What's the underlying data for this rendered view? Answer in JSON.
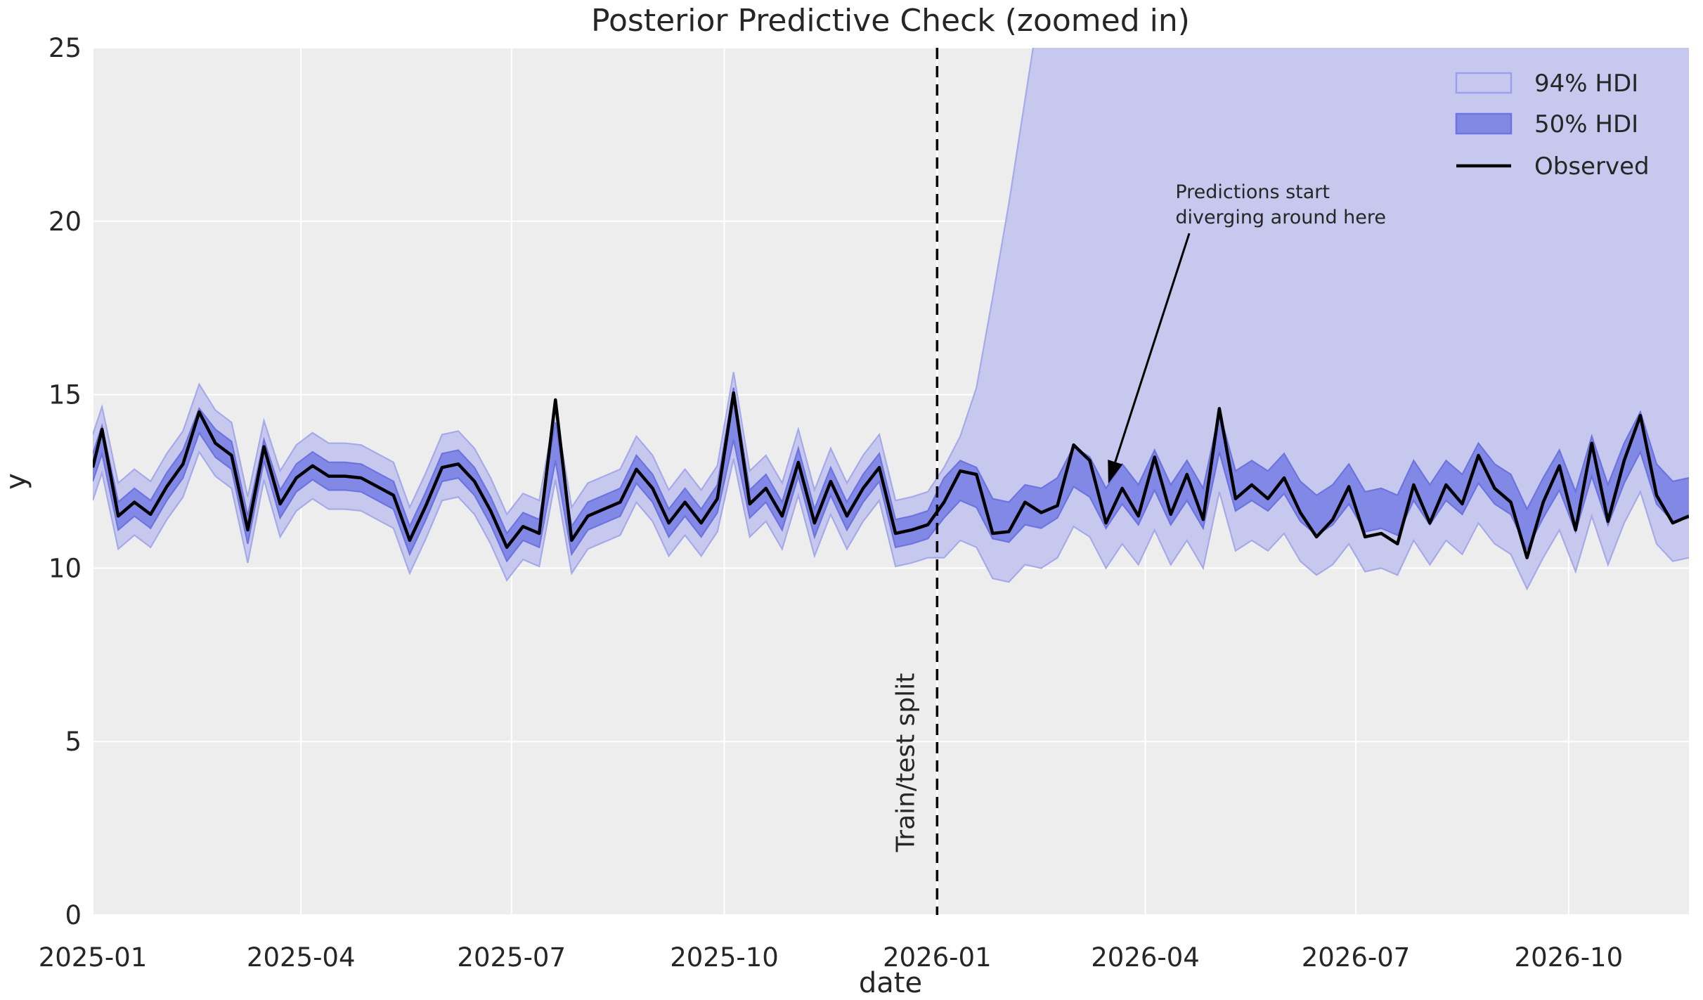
{
  "chart_data": {
    "type": "line",
    "title": "Posterior Predictive Check (zoomed in)",
    "xlabel": "date",
    "ylabel": "y",
    "xlim": [
      "2025-01-01",
      "2026-11-22"
    ],
    "ylim": [
      0,
      25
    ],
    "grid": true,
    "x_ticks": [
      "2025-01-01",
      "2025-04-01",
      "2025-07-01",
      "2025-10-01",
      "2026-01-01",
      "2026-04-01",
      "2026-07-01",
      "2026-10-01"
    ],
    "x_ticklabels": [
      "2025-01",
      "2025-04",
      "2025-07",
      "2025-10",
      "2026-01",
      "2026-04",
      "2026-07",
      "2026-10"
    ],
    "y_ticks": [
      0,
      5,
      10,
      15,
      20,
      25
    ],
    "legend": {
      "position": "upper right",
      "items": [
        {
          "label": "94% HDI",
          "type": "patch"
        },
        {
          "label": "50% HDI",
          "type": "patch"
        },
        {
          "label": "Observed",
          "type": "line"
        }
      ]
    },
    "split_line": {
      "date": "2026-01-01",
      "label": "Train/test split",
      "style": "dashed",
      "color": "#000000"
    },
    "annotation": {
      "line1": "Predictions start",
      "line2": "diverging around here",
      "text_x": "2026-04-14",
      "text_y1": 20.66,
      "text_y2": 19.94,
      "arrow_from_x": "2026-04-20",
      "arrow_from_y": 19.65,
      "arrow_to_x": "2026-03-16",
      "arrow_to_y": 12.44
    },
    "colors": {
      "hdi94_fill": "#c6c8ee",
      "hdi94_edge": "#a6aae8",
      "hdi50_fill": "#8288e6",
      "hdi50_edge": "#6d74de",
      "observed": "#000000",
      "axes_background": "#ededed",
      "grid": "#ffffff",
      "text": "#262626"
    },
    "dates": [
      "2025-01-01",
      "2025-01-05",
      "2025-01-12",
      "2025-01-19",
      "2025-01-26",
      "2025-02-02",
      "2025-02-09",
      "2025-02-16",
      "2025-02-23",
      "2025-03-02",
      "2025-03-09",
      "2025-03-16",
      "2025-03-23",
      "2025-03-30",
      "2025-04-06",
      "2025-04-13",
      "2025-04-20",
      "2025-04-27",
      "2025-05-04",
      "2025-05-11",
      "2025-05-18",
      "2025-05-25",
      "2025-06-01",
      "2025-06-08",
      "2025-06-15",
      "2025-06-22",
      "2025-06-29",
      "2025-07-06",
      "2025-07-13",
      "2025-07-20",
      "2025-07-27",
      "2025-08-03",
      "2025-08-10",
      "2025-08-17",
      "2025-08-24",
      "2025-08-31",
      "2025-09-07",
      "2025-09-14",
      "2025-09-21",
      "2025-09-28",
      "2025-10-05",
      "2025-10-12",
      "2025-10-19",
      "2025-10-26",
      "2025-11-02",
      "2025-11-09",
      "2025-11-16",
      "2025-11-23",
      "2025-11-30",
      "2025-12-07",
      "2025-12-14",
      "2025-12-21",
      "2025-12-28",
      "2026-01-04",
      "2026-01-11",
      "2026-01-18",
      "2026-01-25",
      "2026-02-01",
      "2026-02-08",
      "2026-02-15",
      "2026-02-22",
      "2026-03-01",
      "2026-03-08",
      "2026-03-15",
      "2026-03-22",
      "2026-03-29",
      "2026-04-05",
      "2026-04-12",
      "2026-04-19",
      "2026-04-26",
      "2026-05-03",
      "2026-05-10",
      "2026-05-17",
      "2026-05-24",
      "2026-05-31",
      "2026-06-07",
      "2026-06-14",
      "2026-06-21",
      "2026-06-28",
      "2026-07-05",
      "2026-07-12",
      "2026-07-19",
      "2026-07-26",
      "2026-08-02",
      "2026-08-09",
      "2026-08-16",
      "2026-08-23",
      "2026-08-30",
      "2026-09-06",
      "2026-09-13",
      "2026-09-20",
      "2026-09-27",
      "2026-10-04",
      "2026-10-11",
      "2026-10-18",
      "2026-10-25",
      "2026-11-01",
      "2026-11-08",
      "2026-11-15",
      "2026-11-22"
    ],
    "observed": [
      12.9,
      14.0,
      11.5,
      11.9,
      11.55,
      12.35,
      13.0,
      14.5,
      13.6,
      13.25,
      11.1,
      13.5,
      11.85,
      12.6,
      12.95,
      12.65,
      12.65,
      12.6,
      12.35,
      12.1,
      10.8,
      11.8,
      12.9,
      13.0,
      12.5,
      11.65,
      10.6,
      11.2,
      11.0,
      14.85,
      10.8,
      11.5,
      11.7,
      11.9,
      12.85,
      12.3,
      11.3,
      11.9,
      11.3,
      12.0,
      15.05,
      11.85,
      12.3,
      11.5,
      13.05,
      11.3,
      12.5,
      11.5,
      12.3,
      12.9,
      11.0,
      11.1,
      11.25,
      11.9,
      12.8,
      12.7,
      11.0,
      11.05,
      11.9,
      11.6,
      11.8,
      13.55,
      13.1,
      11.3,
      12.3,
      11.5,
      13.2,
      11.55,
      12.7,
      11.4,
      14.6,
      12.0,
      12.4,
      12.0,
      12.6,
      11.6,
      10.9,
      11.4,
      12.35,
      10.9,
      11.0,
      10.7,
      12.4,
      11.3,
      12.4,
      11.85,
      13.25,
      12.3,
      11.9,
      10.3,
      11.9,
      12.95,
      11.1,
      13.6,
      11.35,
      13.1,
      14.4,
      12.1,
      11.3,
      11.5
    ],
    "hdi50_lower": [
      12.5,
      13.3,
      11.1,
      11.5,
      11.15,
      11.95,
      12.6,
      13.9,
      13.2,
      12.85,
      10.7,
      13.1,
      11.45,
      12.2,
      12.55,
      12.25,
      12.25,
      12.2,
      11.95,
      11.7,
      10.4,
      11.4,
      12.5,
      12.6,
      12.1,
      11.25,
      10.2,
      10.8,
      10.6,
      13.1,
      10.4,
      11.1,
      11.3,
      11.5,
      12.45,
      11.9,
      10.9,
      11.5,
      10.9,
      11.6,
      13.7,
      11.45,
      11.9,
      11.1,
      12.65,
      10.9,
      12.1,
      11.1,
      11.9,
      12.5,
      10.6,
      10.7,
      10.85,
      11.45,
      11.95,
      11.75,
      10.85,
      10.75,
      11.25,
      11.15,
      11.45,
      12.35,
      12.05,
      11.15,
      11.85,
      11.25,
      12.25,
      11.25,
      11.95,
      11.15,
      13.35,
      11.65,
      11.95,
      11.65,
      12.15,
      11.35,
      10.95,
      11.25,
      11.85,
      11.05,
      11.15,
      10.95,
      11.95,
      11.25,
      11.95,
      11.55,
      12.45,
      11.85,
      11.55,
      10.55,
      11.45,
      12.25,
      11.05,
      12.65,
      11.25,
      12.45,
      13.35,
      11.85,
      11.35,
      11.45
    ],
    "hdi50_upper": [
      13.3,
      14.1,
      11.9,
      12.3,
      11.95,
      12.75,
      13.4,
      14.6,
      14.0,
      13.65,
      11.5,
      13.7,
      12.25,
      13.0,
      13.35,
      13.05,
      13.05,
      13.0,
      12.75,
      12.5,
      11.2,
      12.2,
      13.3,
      13.4,
      12.9,
      12.05,
      11.0,
      11.6,
      11.4,
      14.2,
      11.2,
      11.9,
      12.1,
      12.3,
      13.25,
      12.7,
      11.7,
      12.3,
      11.7,
      12.4,
      15.2,
      12.25,
      12.7,
      11.9,
      13.45,
      11.7,
      12.9,
      11.9,
      12.7,
      13.3,
      11.4,
      11.5,
      11.65,
      12.6,
      13.1,
      12.9,
      12.0,
      11.9,
      12.4,
      12.3,
      12.6,
      13.5,
      13.2,
      12.3,
      13.0,
      12.4,
      13.4,
      12.4,
      13.1,
      12.3,
      14.5,
      12.8,
      13.1,
      12.8,
      13.3,
      12.5,
      12.1,
      12.4,
      13.0,
      12.2,
      12.3,
      12.1,
      13.1,
      12.4,
      13.1,
      12.7,
      13.6,
      13.0,
      12.7,
      11.7,
      12.6,
      13.4,
      12.2,
      13.8,
      12.4,
      13.6,
      14.5,
      13.0,
      12.5,
      12.6
    ],
    "hdi94_lower": [
      11.95,
      12.75,
      10.55,
      10.95,
      10.6,
      11.4,
      12.05,
      13.35,
      12.65,
      12.3,
      10.15,
      12.55,
      10.9,
      11.65,
      12.0,
      11.7,
      11.7,
      11.65,
      11.4,
      11.15,
      9.85,
      10.85,
      11.95,
      12.05,
      11.55,
      10.7,
      9.65,
      10.25,
      10.05,
      12.55,
      9.85,
      10.55,
      10.75,
      10.95,
      11.9,
      11.35,
      10.35,
      10.95,
      10.35,
      11.05,
      13.15,
      10.9,
      11.35,
      10.55,
      12.1,
      10.35,
      11.55,
      10.55,
      11.35,
      11.95,
      10.05,
      10.15,
      10.3,
      10.3,
      10.8,
      10.6,
      9.7,
      9.6,
      10.1,
      10.0,
      10.3,
      11.2,
      10.9,
      10.0,
      10.7,
      10.1,
      11.1,
      10.1,
      10.8,
      10.0,
      12.2,
      10.5,
      10.8,
      10.5,
      11.0,
      10.2,
      9.8,
      10.1,
      10.7,
      9.9,
      10.0,
      9.8,
      10.8,
      10.1,
      10.8,
      10.4,
      11.3,
      10.7,
      10.4,
      9.4,
      10.3,
      11.1,
      9.9,
      11.5,
      10.1,
      11.3,
      12.2,
      10.7,
      10.2,
      10.3
    ],
    "hdi94_upper": [
      13.85,
      14.65,
      12.45,
      12.85,
      12.5,
      13.3,
      13.95,
      15.3,
      14.55,
      14.2,
      12.05,
      14.25,
      12.8,
      13.55,
      13.9,
      13.6,
      13.6,
      13.55,
      13.3,
      13.05,
      11.75,
      12.75,
      13.85,
      13.95,
      13.45,
      12.6,
      11.55,
      12.15,
      11.95,
      14.6,
      11.75,
      12.45,
      12.65,
      12.85,
      13.8,
      13.25,
      12.25,
      12.85,
      12.25,
      12.95,
      15.65,
      12.8,
      13.25,
      12.45,
      14.0,
      12.25,
      13.45,
      12.45,
      13.25,
      13.85,
      11.95,
      12.05,
      12.2,
      12.9,
      13.8,
      15.2,
      17.8,
      20.5,
      23.5,
      26.5,
      28,
      28,
      28,
      28,
      28,
      28,
      28,
      28,
      28,
      28,
      28,
      28,
      28,
      28,
      28,
      28,
      28,
      28,
      28,
      28,
      28,
      28,
      28,
      28,
      28,
      28,
      28,
      28,
      28,
      28,
      28,
      28,
      28,
      28,
      28,
      28,
      28,
      28,
      28,
      28
    ]
  }
}
